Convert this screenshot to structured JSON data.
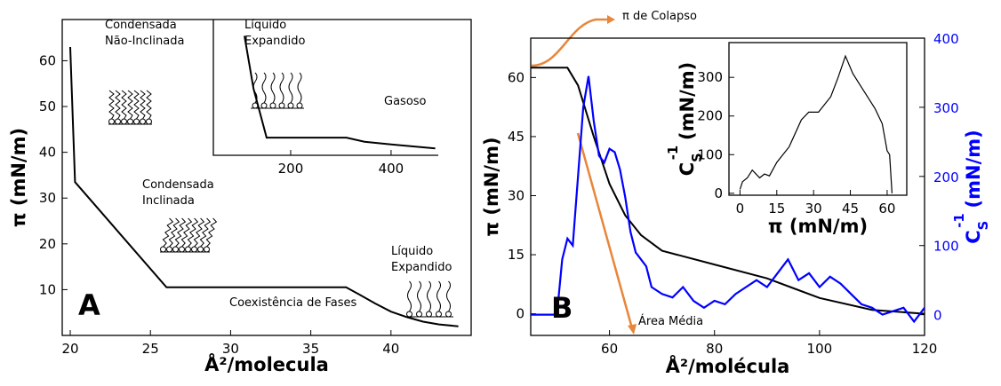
{
  "chart_data": [
    {
      "type": "line",
      "panel": "A",
      "xlabel": "Å²/molecula",
      "ylabel": "π (mN/m)",
      "xlim": [
        19.5,
        45
      ],
      "ylim": [
        0,
        69
      ],
      "xticks": [
        20,
        25,
        30,
        35,
        40
      ],
      "yticks": [
        10,
        20,
        30,
        40,
        50,
        60
      ],
      "series": [
        {
          "color": "#000000",
          "x": [
            20,
            20.3,
            26,
            37.2,
            38,
            39,
            40,
            41,
            42,
            43,
            44.2
          ],
          "values": [
            63,
            33.5,
            10.5,
            10.5,
            9,
            7,
            5.2,
            4,
            3,
            2.4,
            2
          ]
        }
      ],
      "annotations": [
        {
          "lines": [
            "Condensada",
            "Não-Inclinada"
          ]
        },
        {
          "lines": [
            "Condensada",
            "Inclinada"
          ]
        },
        {
          "lines": [
            "Coexistência de Fases"
          ]
        },
        {
          "lines": [
            "Líquido",
            "Expandido"
          ]
        }
      ]
    },
    {
      "type": "line",
      "xlim": [
        46,
        494
      ],
      "ylim": [
        0,
        100
      ],
      "xticks": [
        200,
        400
      ],
      "series": [
        {
          "color": "#000000",
          "x": [
            108,
            126,
            152,
            311,
            347,
            400,
            488
          ],
          "values": [
            88,
            49,
            13,
            13,
            10,
            8,
            5
          ]
        }
      ],
      "annotations": [
        {
          "lines": [
            "Líquido",
            "Expandido"
          ]
        },
        {
          "lines": [
            "Gasoso"
          ]
        }
      ]
    },
    {
      "type": "line",
      "panel": "B",
      "xlabel": "Å²/molécula",
      "ylabel": "π (mN/m)",
      "y2label": {
        "base": "C",
        "sub": "S",
        "sup": "-1",
        "unit": "(mN/m)"
      },
      "xlim": [
        45,
        120
      ],
      "ylim": [
        -5.5,
        70
      ],
      "y2lim": [
        -30,
        400
      ],
      "xticks": [
        60,
        80,
        100,
        120
      ],
      "yticks": [
        0,
        15,
        30,
        45,
        60
      ],
      "y2ticks": [
        0,
        100,
        200,
        300,
        400
      ],
      "series": [
        {
          "color": "#000000",
          "x": [
            45,
            52,
            54,
            57,
            60,
            63,
            66,
            70,
            80,
            90,
            100,
            110,
            120
          ],
          "values": [
            62.5,
            62.5,
            58,
            45,
            33,
            25,
            20,
            16,
            12.5,
            9,
            4,
            1,
            0
          ]
        },
        {
          "color": "#0000ff",
          "axis": "y2",
          "x": [
            45,
            50,
            51,
            52,
            53,
            54,
            55,
            56,
            57,
            58,
            59,
            60,
            61,
            62,
            63,
            64,
            65,
            66,
            67,
            68,
            70,
            72,
            74,
            76,
            78,
            80,
            82,
            84,
            86,
            88,
            90,
            92,
            94,
            96,
            98,
            100,
            102,
            104,
            106,
            108,
            110,
            112,
            114,
            116,
            118,
            120
          ],
          "values": [
            0,
            0,
            80,
            110,
            100,
            200,
            300,
            345,
            280,
            230,
            220,
            240,
            235,
            210,
            170,
            120,
            90,
            80,
            70,
            40,
            30,
            25,
            40,
            20,
            10,
            20,
            15,
            30,
            40,
            50,
            40,
            60,
            80,
            50,
            60,
            40,
            55,
            45,
            30,
            15,
            10,
            0,
            5,
            10,
            -10,
            10
          ]
        }
      ],
      "annotations": [
        {
          "lines": [
            "π de Colapso"
          ]
        },
        {
          "lines": [
            "Área Média"
          ]
        }
      ]
    },
    {
      "type": "line",
      "xlabel": "π (mN/m)",
      "ylabel": {
        "base": "C",
        "sub": "S",
        "sup": "-1",
        "unit": "(mN/m)"
      },
      "xlim": [
        -4.5,
        68
      ],
      "ylim": [
        -5,
        390
      ],
      "xticks": [
        0,
        15,
        30,
        45,
        60
      ],
      "yticks": [
        0,
        100,
        200,
        300
      ],
      "series": [
        {
          "color": "#000000",
          "x": [
            0,
            1,
            3,
            5,
            8,
            10,
            12,
            15,
            20,
            25,
            28,
            32,
            37,
            40,
            43,
            46,
            50,
            55,
            58,
            60,
            61,
            62
          ],
          "values": [
            10,
            30,
            40,
            60,
            40,
            50,
            45,
            80,
            120,
            190,
            210,
            210,
            250,
            300,
            355,
            310,
            270,
            220,
            180,
            110,
            100,
            0
          ]
        }
      ]
    }
  ]
}
